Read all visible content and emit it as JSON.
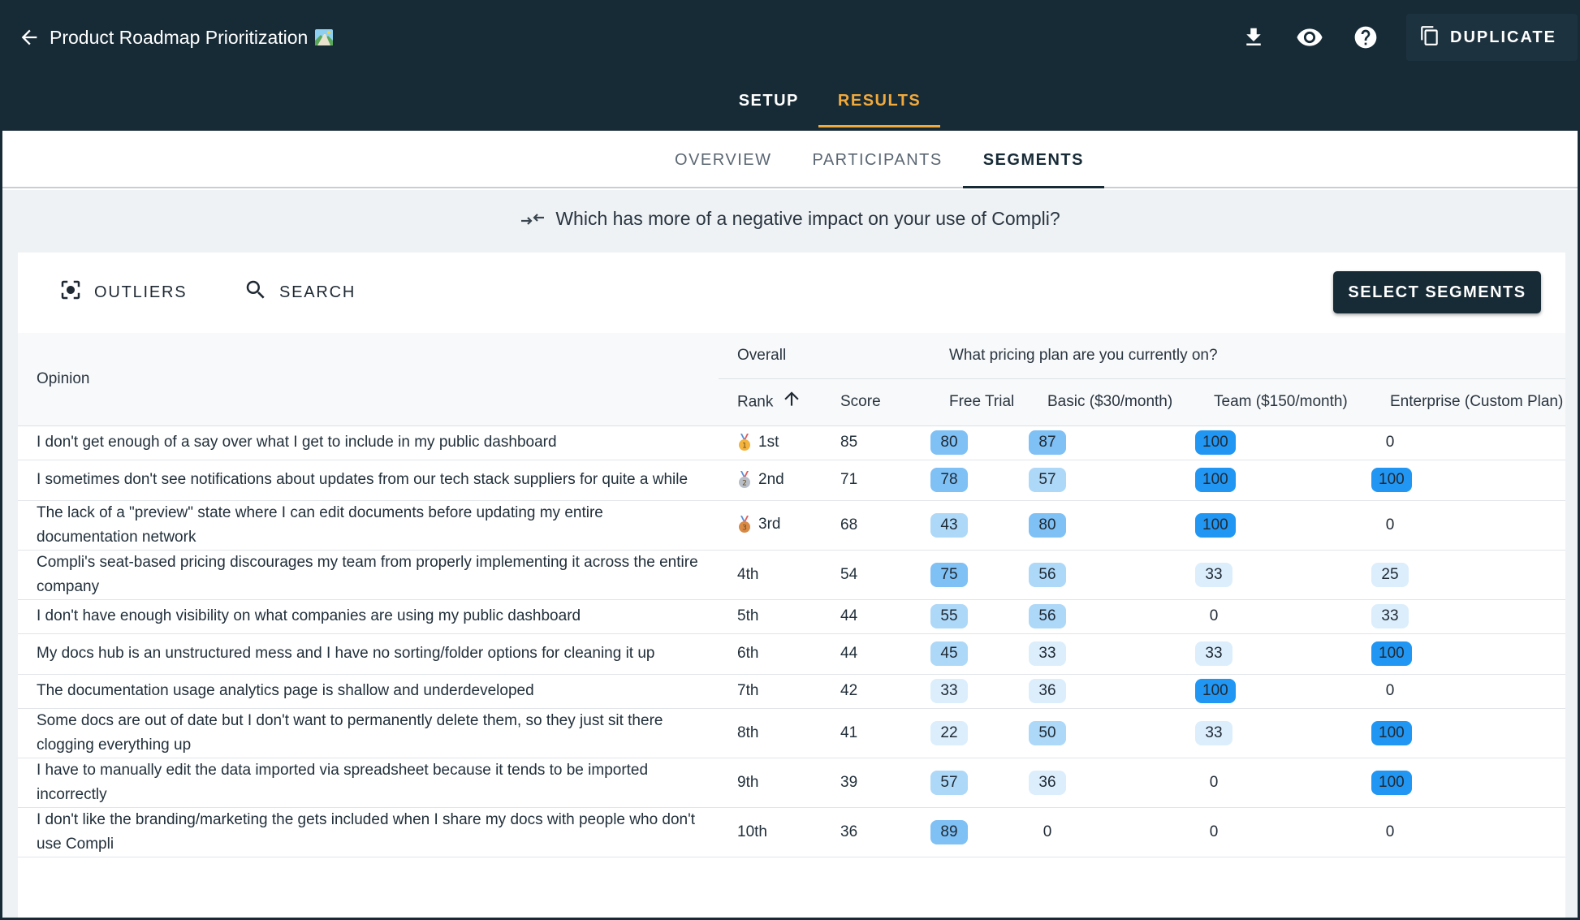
{
  "header": {
    "title": "Product Roadmap Prioritization",
    "actions": [
      "download-icon",
      "eye-icon",
      "help-icon"
    ],
    "duplicate_label": "DUPLICATE"
  },
  "main_tabs": [
    {
      "label": "SETUP",
      "active": false
    },
    {
      "label": "RESULTS",
      "active": true
    }
  ],
  "sub_tabs": [
    {
      "label": "OVERVIEW",
      "active": false
    },
    {
      "label": "PARTICIPANTS",
      "active": false
    },
    {
      "label": "SEGMENTS",
      "active": true
    }
  ],
  "question": "Which has more of a negative impact on your use of Compli?",
  "toolbar": {
    "outliers_label": "OUTLIERS",
    "search_label": "SEARCH",
    "select_segments_label": "SELECT SEGMENTS"
  },
  "table": {
    "opinion_header": "Opinion",
    "overall_header": "Overall",
    "segment_header": "What pricing plan are you currently on?",
    "rank_header": "Rank",
    "score_header": "Score",
    "segment_columns": [
      "Free Trial",
      "Basic ($30/month)",
      "Team ($150/month)",
      "Enterprise (Custom Plan)"
    ],
    "rows": [
      {
        "opinion": "I don't get enough of a say over what I get to include in my public dashboard",
        "medal": "gold",
        "rank": "1st",
        "score": "85",
        "segments": [
          80,
          87,
          100,
          0
        ]
      },
      {
        "opinion": "I sometimes don't see notifications about updates from our tech stack suppliers for quite a while",
        "medal": "silver",
        "rank": "2nd",
        "score": "71",
        "segments": [
          78,
          57,
          100,
          100
        ]
      },
      {
        "opinion": "The lack of a \"preview\" state where I can edit documents before updating my entire documentation network",
        "medal": "bronze",
        "rank": "3rd",
        "score": "68",
        "segments": [
          43,
          80,
          100,
          0
        ]
      },
      {
        "opinion": "Compli's seat-based pricing discourages my team from properly implementing it across the entire company",
        "medal": "",
        "rank": "4th",
        "score": "54",
        "segments": [
          75,
          56,
          33,
          25
        ]
      },
      {
        "opinion": "I don't have enough visibility on what companies are using my public dashboard",
        "medal": "",
        "rank": "5th",
        "score": "44",
        "segments": [
          55,
          56,
          0,
          33
        ]
      },
      {
        "opinion": "My docs hub is an unstructured mess and I have no sorting/folder options for cleaning it up",
        "medal": "",
        "rank": "6th",
        "score": "44",
        "segments": [
          45,
          33,
          33,
          100
        ]
      },
      {
        "opinion": "The documentation usage analytics page is shallow and underdeveloped",
        "medal": "",
        "rank": "7th",
        "score": "42",
        "segments": [
          33,
          36,
          100,
          0
        ]
      },
      {
        "opinion": "Some docs are out of date but I don't want to permanently delete them, so they just sit there clogging everything up",
        "medal": "",
        "rank": "8th",
        "score": "41",
        "segments": [
          22,
          50,
          33,
          100
        ]
      },
      {
        "opinion": "I have to manually edit the data imported via spreadsheet because it tends to be imported incorrectly",
        "medal": "",
        "rank": "9th",
        "score": "39",
        "segments": [
          57,
          36,
          0,
          100
        ]
      },
      {
        "opinion": "I don't like the branding/marketing the gets included when I share my docs with people who don't use Compli",
        "medal": "",
        "rank": "10th",
        "score": "36",
        "segments": [
          89,
          0,
          0,
          0
        ]
      }
    ]
  },
  "colors": {
    "header_bg": "#172b37",
    "accent": "#f2a93b",
    "pill_strong": "#2196f3",
    "pill_medium": "#7fc0f5",
    "pill_light": "#dceefc"
  }
}
